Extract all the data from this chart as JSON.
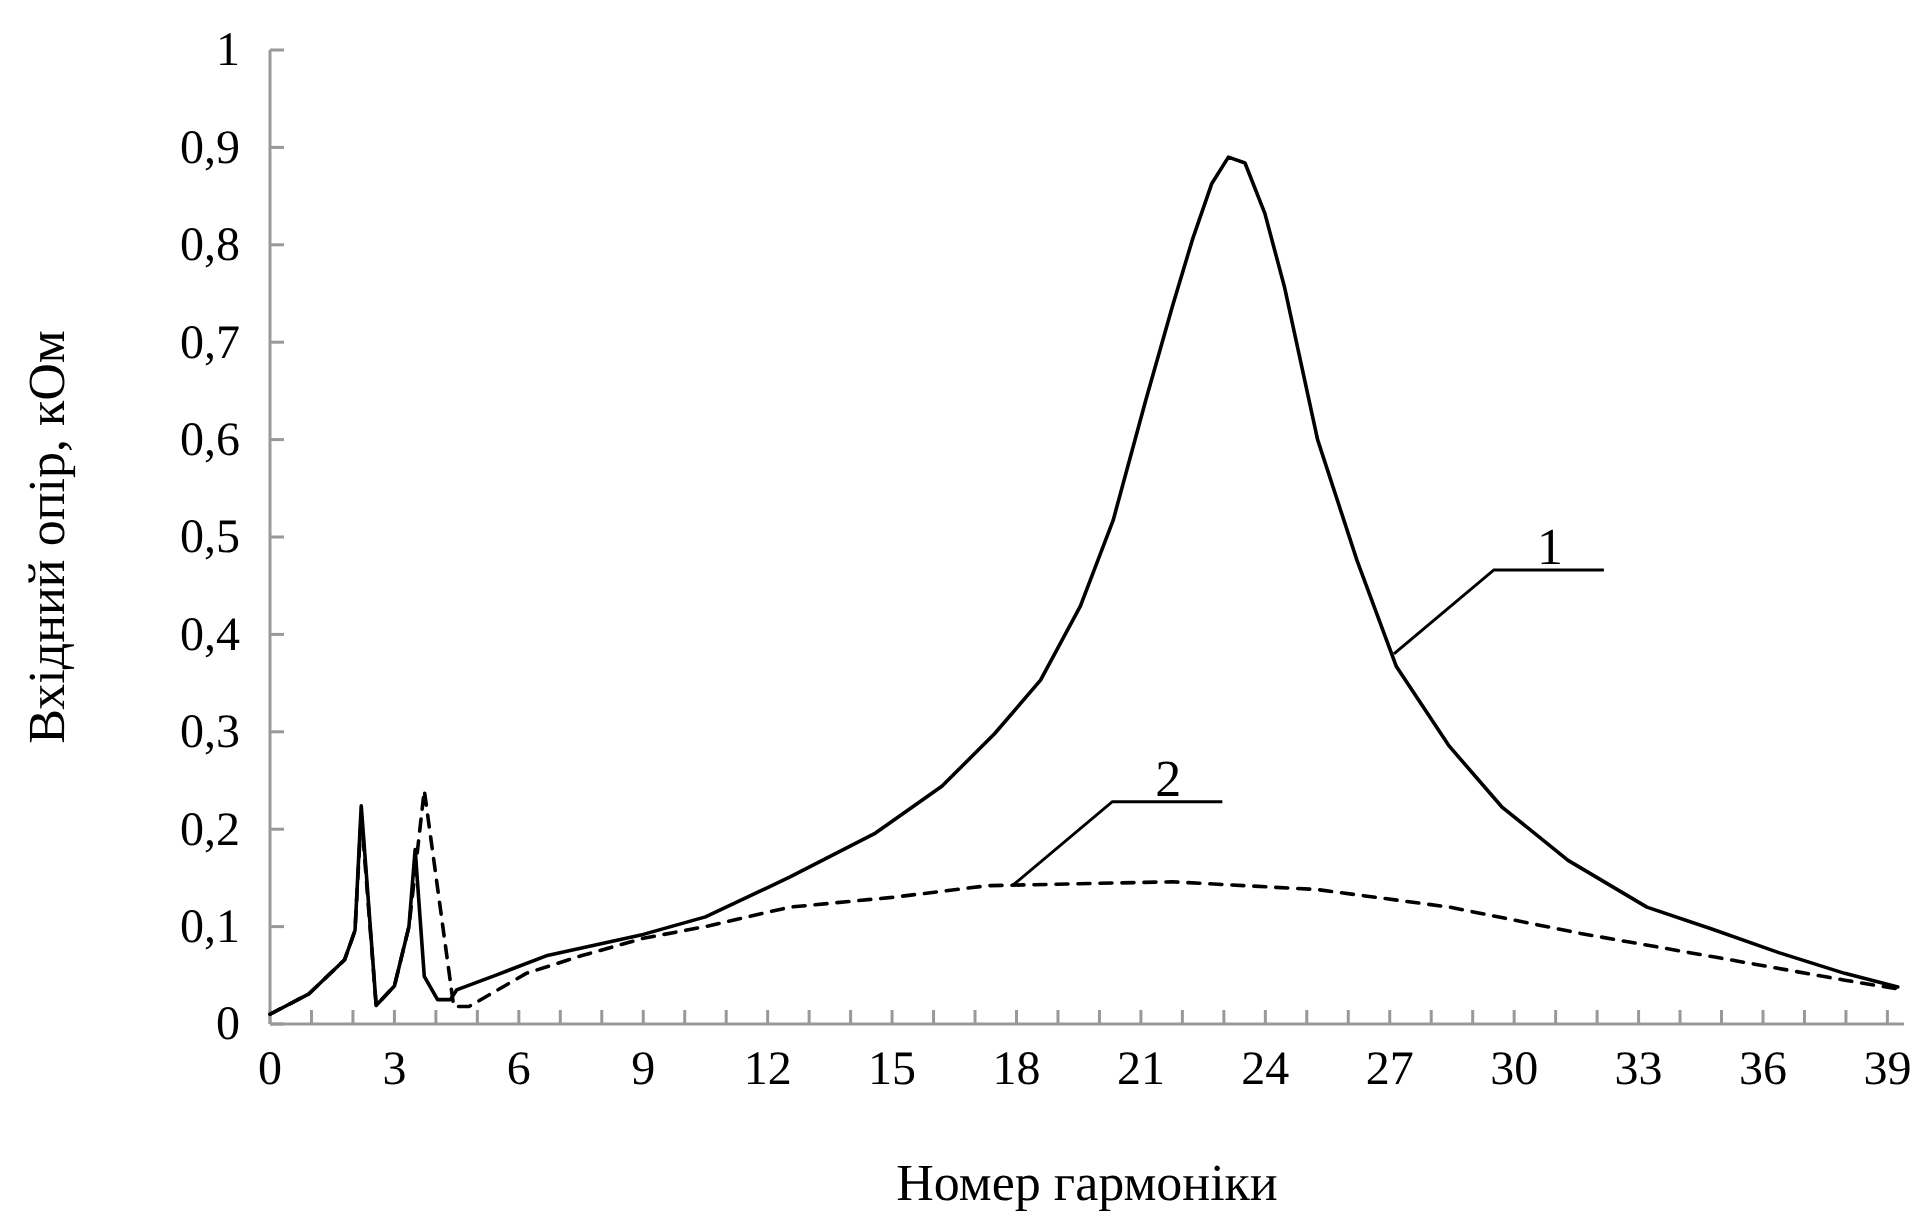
{
  "chart_data": {
    "type": "line",
    "xlabel": "Номер гармоніки",
    "ylabel": "Вхідний опір, кОм",
    "xlim": [
      0,
      39.4
    ],
    "ylim": [
      0,
      1
    ],
    "xticks": [
      0,
      {
        "value": 1,
        "label": null
      },
      {
        "value": 2,
        "label": null
      },
      3,
      {
        "value": 4,
        "label": null
      },
      {
        "value": 5,
        "label": null
      },
      6,
      {
        "value": 7,
        "label": null
      },
      {
        "value": 8,
        "label": null
      },
      9,
      {
        "value": 10,
        "label": null
      },
      {
        "value": 11,
        "label": null
      },
      12,
      {
        "value": 13,
        "label": null
      },
      {
        "value": 14,
        "label": null
      },
      15,
      {
        "value": 16,
        "label": null
      },
      {
        "value": 17,
        "label": null
      },
      18,
      {
        "value": 19,
        "label": null
      },
      {
        "value": 20,
        "label": null
      },
      21,
      {
        "value": 22,
        "label": null
      },
      {
        "value": 23,
        "label": null
      },
      24,
      {
        "value": 25,
        "label": null
      },
      {
        "value": 26,
        "label": null
      },
      27,
      {
        "value": 28,
        "label": null
      },
      {
        "value": 29,
        "label": null
      },
      30,
      {
        "value": 31,
        "label": null
      },
      {
        "value": 32,
        "label": null
      },
      33,
      {
        "value": 34,
        "label": null
      },
      {
        "value": 35,
        "label": null
      },
      36,
      {
        "value": 37,
        "label": null
      },
      {
        "value": 38,
        "label": null
      },
      39
    ],
    "yticks": [
      0,
      {
        "value": 0.1,
        "label": "0,1"
      },
      {
        "value": 0.2,
        "label": "0,2"
      },
      {
        "value": 0.3,
        "label": "0,3"
      },
      {
        "value": 0.4,
        "label": "0,4"
      },
      {
        "value": 0.5,
        "label": "0,5"
      },
      {
        "value": 0.6,
        "label": "0,6"
      },
      {
        "value": 0.7,
        "label": "0,7"
      },
      {
        "value": 0.8,
        "label": "0,8"
      },
      {
        "value": 0.9,
        "label": "0,9"
      },
      1
    ],
    "grid": false,
    "series": [
      {
        "color": "#000000",
        "line_style": "solid",
        "x": [
          0,
          0.94,
          1.8,
          2.05,
          2.2,
          2.56,
          3.0,
          3.35,
          3.5,
          3.72,
          4.04,
          4.35,
          4.5,
          5.5,
          6.66,
          9,
          10.5,
          12,
          12.54,
          14.6,
          16.2,
          17.47,
          18.58,
          19.54,
          20.33,
          21.12,
          21.76,
          22.24,
          22.71,
          23.11,
          23.51,
          23.99,
          24.46,
          25.26,
          26.21,
          27.16,
          28.44,
          29.7,
          31.3,
          33.2,
          34.8,
          36.4,
          37.97,
          39.25
        ],
        "values": [
          0.01,
          0.031,
          0.066,
          0.096,
          0.224,
          0.019,
          0.039,
          0.1,
          0.179,
          0.049,
          0.025,
          0.025,
          0.035,
          0.051,
          0.07,
          0.092,
          0.11,
          0.14,
          0.151,
          0.196,
          0.244,
          0.298,
          0.353,
          0.429,
          0.517,
          0.641,
          0.737,
          0.805,
          0.863,
          0.89,
          0.884,
          0.832,
          0.757,
          0.6,
          0.476,
          0.367,
          0.285,
          0.223,
          0.168,
          0.12,
          0.097,
          0.073,
          0.052,
          0.038
        ]
      },
      {
        "color": "#000000",
        "line_style": "dashed",
        "x": [
          0,
          0.94,
          1.8,
          2.05,
          2.2,
          2.56,
          3.0,
          3.35,
          3.72,
          4.43,
          4.8,
          6.18,
          7.5,
          9,
          10.5,
          12.54,
          15,
          17.3,
          21.76,
          25.26,
          28.44,
          31.6,
          34.8,
          37.97,
          39.25
        ],
        "values": [
          0.01,
          0.031,
          0.066,
          0.096,
          0.215,
          0.019,
          0.039,
          0.1,
          0.24,
          0.018,
          0.018,
          0.052,
          0.07,
          0.088,
          0.1,
          0.12,
          0.13,
          0.142,
          0.146,
          0.138,
          0.12,
          0.093,
          0.069,
          0.045,
          0.036
        ]
      }
    ],
    "annotations": [
      {
        "text": "1",
        "x": 27.1,
        "y": 0.38
      },
      {
        "text": "2",
        "x": 17.9,
        "y": 0.142
      }
    ]
  }
}
